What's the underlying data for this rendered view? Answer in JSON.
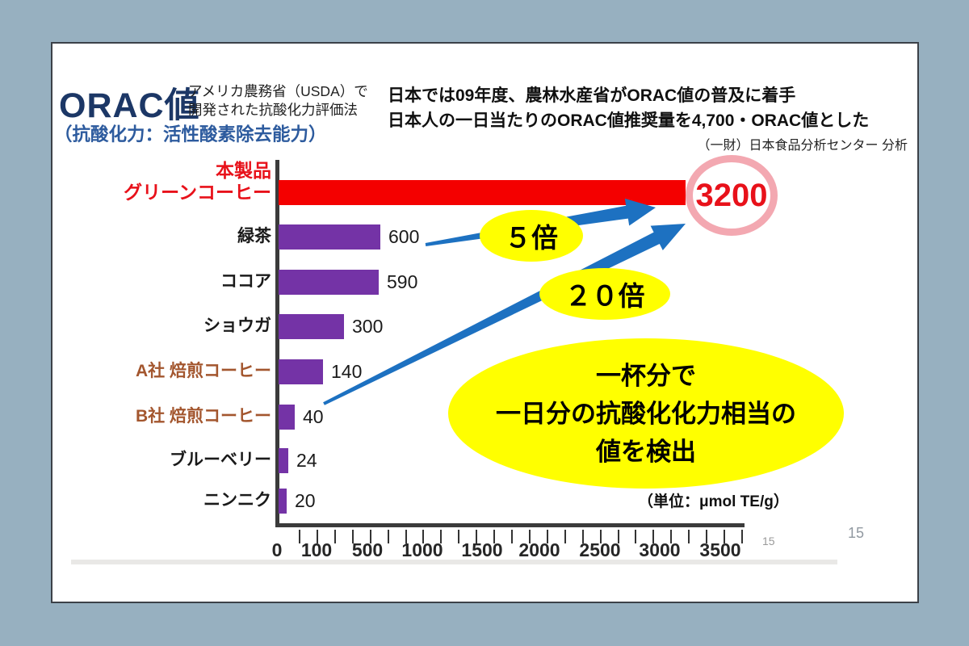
{
  "slide": {
    "title": "ORAC値",
    "title_sub_line1": "アメリカ農務省（USDA）で",
    "title_sub_line2": "開発された抗酸化力評価法",
    "title_caption": "（抗酸化力：活性酸素除去能力）",
    "header_line1": "日本では09年度、農林水産省がORAC値の普及に着手",
    "header_line2": "日本人の一日当たりのORAC値推奨量を4,700・ORAC値とした",
    "credit": "（一財）日本食品分析センター 分析",
    "inner_page_number": "15",
    "page_number": "15"
  },
  "annotations": {
    "highlight_value": "3200",
    "multiplier_1": "５倍",
    "multiplier_2": "２０倍",
    "callout_line1": "一杯分で",
    "callout_line2": "一日分の抗酸化化力相当の",
    "callout_line3": "値を検出",
    "unit_label": "（単位：μmol TE/g）"
  },
  "colors": {
    "background": "#97b0c0",
    "slide_bg": "#ffffff",
    "title_navy": "#1c3766",
    "caption_blue": "#2d5b9e",
    "bar_red": "#f40000",
    "bar_purple": "#7433a6",
    "label_brown": "#a3562e",
    "label_red": "#e8111a",
    "arrow_blue": "#1d71c1",
    "oval_yellow": "#ffff00",
    "circle_pink": "#f3a8b1"
  },
  "chart_data": {
    "type": "bar",
    "orientation": "horizontal",
    "title": "",
    "unit": "μmol TE/g",
    "x_ticks": [
      "0",
      "100",
      "500",
      "1000",
      "1500",
      "2000",
      "2500",
      "3000",
      "3500"
    ],
    "x_tick_values": [
      0,
      100,
      500,
      1000,
      1500,
      2000,
      2500,
      3000,
      3500
    ],
    "grid": false,
    "legend": false,
    "rows": [
      {
        "label": "本製品 グリーンコーヒー",
        "label_lines": [
          "本製品",
          "グリーンコーヒー"
        ],
        "value": 3200,
        "bar_color": "#f40000",
        "label_color": "#e8111a",
        "value_beside": false
      },
      {
        "label": "緑茶",
        "value": 600,
        "bar_color": "#7433a6",
        "label_color": "#1a1a1a",
        "value_beside": true
      },
      {
        "label": "ココア",
        "value": 590,
        "bar_color": "#7433a6",
        "label_color": "#1a1a1a",
        "value_beside": true
      },
      {
        "label": "ショウガ",
        "value": 300,
        "bar_color": "#7433a6",
        "label_color": "#1a1a1a",
        "value_beside": true
      },
      {
        "label": "A社 焙煎コーヒー",
        "value": 140,
        "bar_color": "#7433a6",
        "label_color": "#a3562e",
        "value_beside": true
      },
      {
        "label": "B社 焙煎コーヒー",
        "value": 40,
        "bar_color": "#7433a6",
        "label_color": "#a3562e",
        "value_beside": true
      },
      {
        "label": "ブルーベリー",
        "value": 24,
        "bar_color": "#7433a6",
        "label_color": "#1a1a1a",
        "value_beside": true
      },
      {
        "label": "ニンニク",
        "value": 20,
        "bar_color": "#7433a6",
        "label_color": "#1a1a1a",
        "value_beside": true
      }
    ]
  }
}
